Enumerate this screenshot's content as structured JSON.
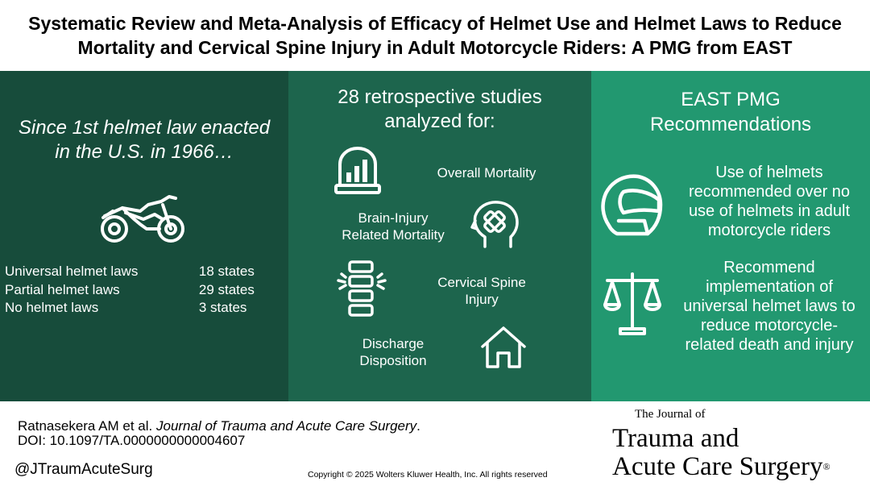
{
  "title": {
    "line1": "Systematic Review and Meta-Analysis of Efficacy of Helmet Use and Helmet Laws to Reduce",
    "line2": "Mortality and Cervical Spine Injury in Adult Motorcycle Riders: A PMG from EAST"
  },
  "left_panel": {
    "heading_line1": "Since 1st helmet law enacted",
    "heading_line2": "in the U.S. in 1966…",
    "icon": "motorcycle-icon",
    "laws": [
      {
        "name": "Universal helmet laws",
        "count": "18 states"
      },
      {
        "name": "Partial helmet laws",
        "count": "29 states"
      },
      {
        "name": "No helmet laws",
        "count": "3 states"
      }
    ]
  },
  "mid_panel": {
    "heading_line1": "28 retrospective studies",
    "heading_line2": "analyzed for:",
    "outcomes": {
      "overall_mortality": "Overall Mortality",
      "brain_line1": "Brain-Injury",
      "brain_line2": "Related Mortality",
      "cspine_line1": "Cervical Spine",
      "cspine_line2": "Injury",
      "discharge_line1": "Discharge",
      "discharge_line2": "Disposition"
    },
    "icons": [
      "tombstone-chart-icon",
      "head-bandage-icon",
      "spine-icon",
      "home-icon"
    ]
  },
  "right_panel": {
    "heading_line1": "EAST PMG",
    "heading_line2": "Recommendations",
    "rec1": [
      "Use of helmets",
      "recommended over no",
      "use of helmets in adult",
      "motorcycle riders"
    ],
    "rec2": [
      "Recommend",
      "implementation of",
      "universal helmet laws to",
      "reduce motorcycle-",
      "related death and injury"
    ],
    "icons": [
      "helmet-icon",
      "scales-icon"
    ]
  },
  "footer": {
    "citation_authors": "Ratnasekera AM et al. ",
    "citation_journal": "Journal of Trauma and Acute Care Surgery",
    "citation_end": ".",
    "doi": "DOI: 10.1097/TA.0000000000004607",
    "handle": "@JTraumAcuteSurg",
    "copyright": "Copyright © 2025  Wolters Kluwer Health, Inc. All rights reserved",
    "journal_pre": "The Journal of",
    "journal_line1": "Trauma and",
    "journal_line2": "Acute Care Surgery",
    "journal_reg": "®"
  }
}
